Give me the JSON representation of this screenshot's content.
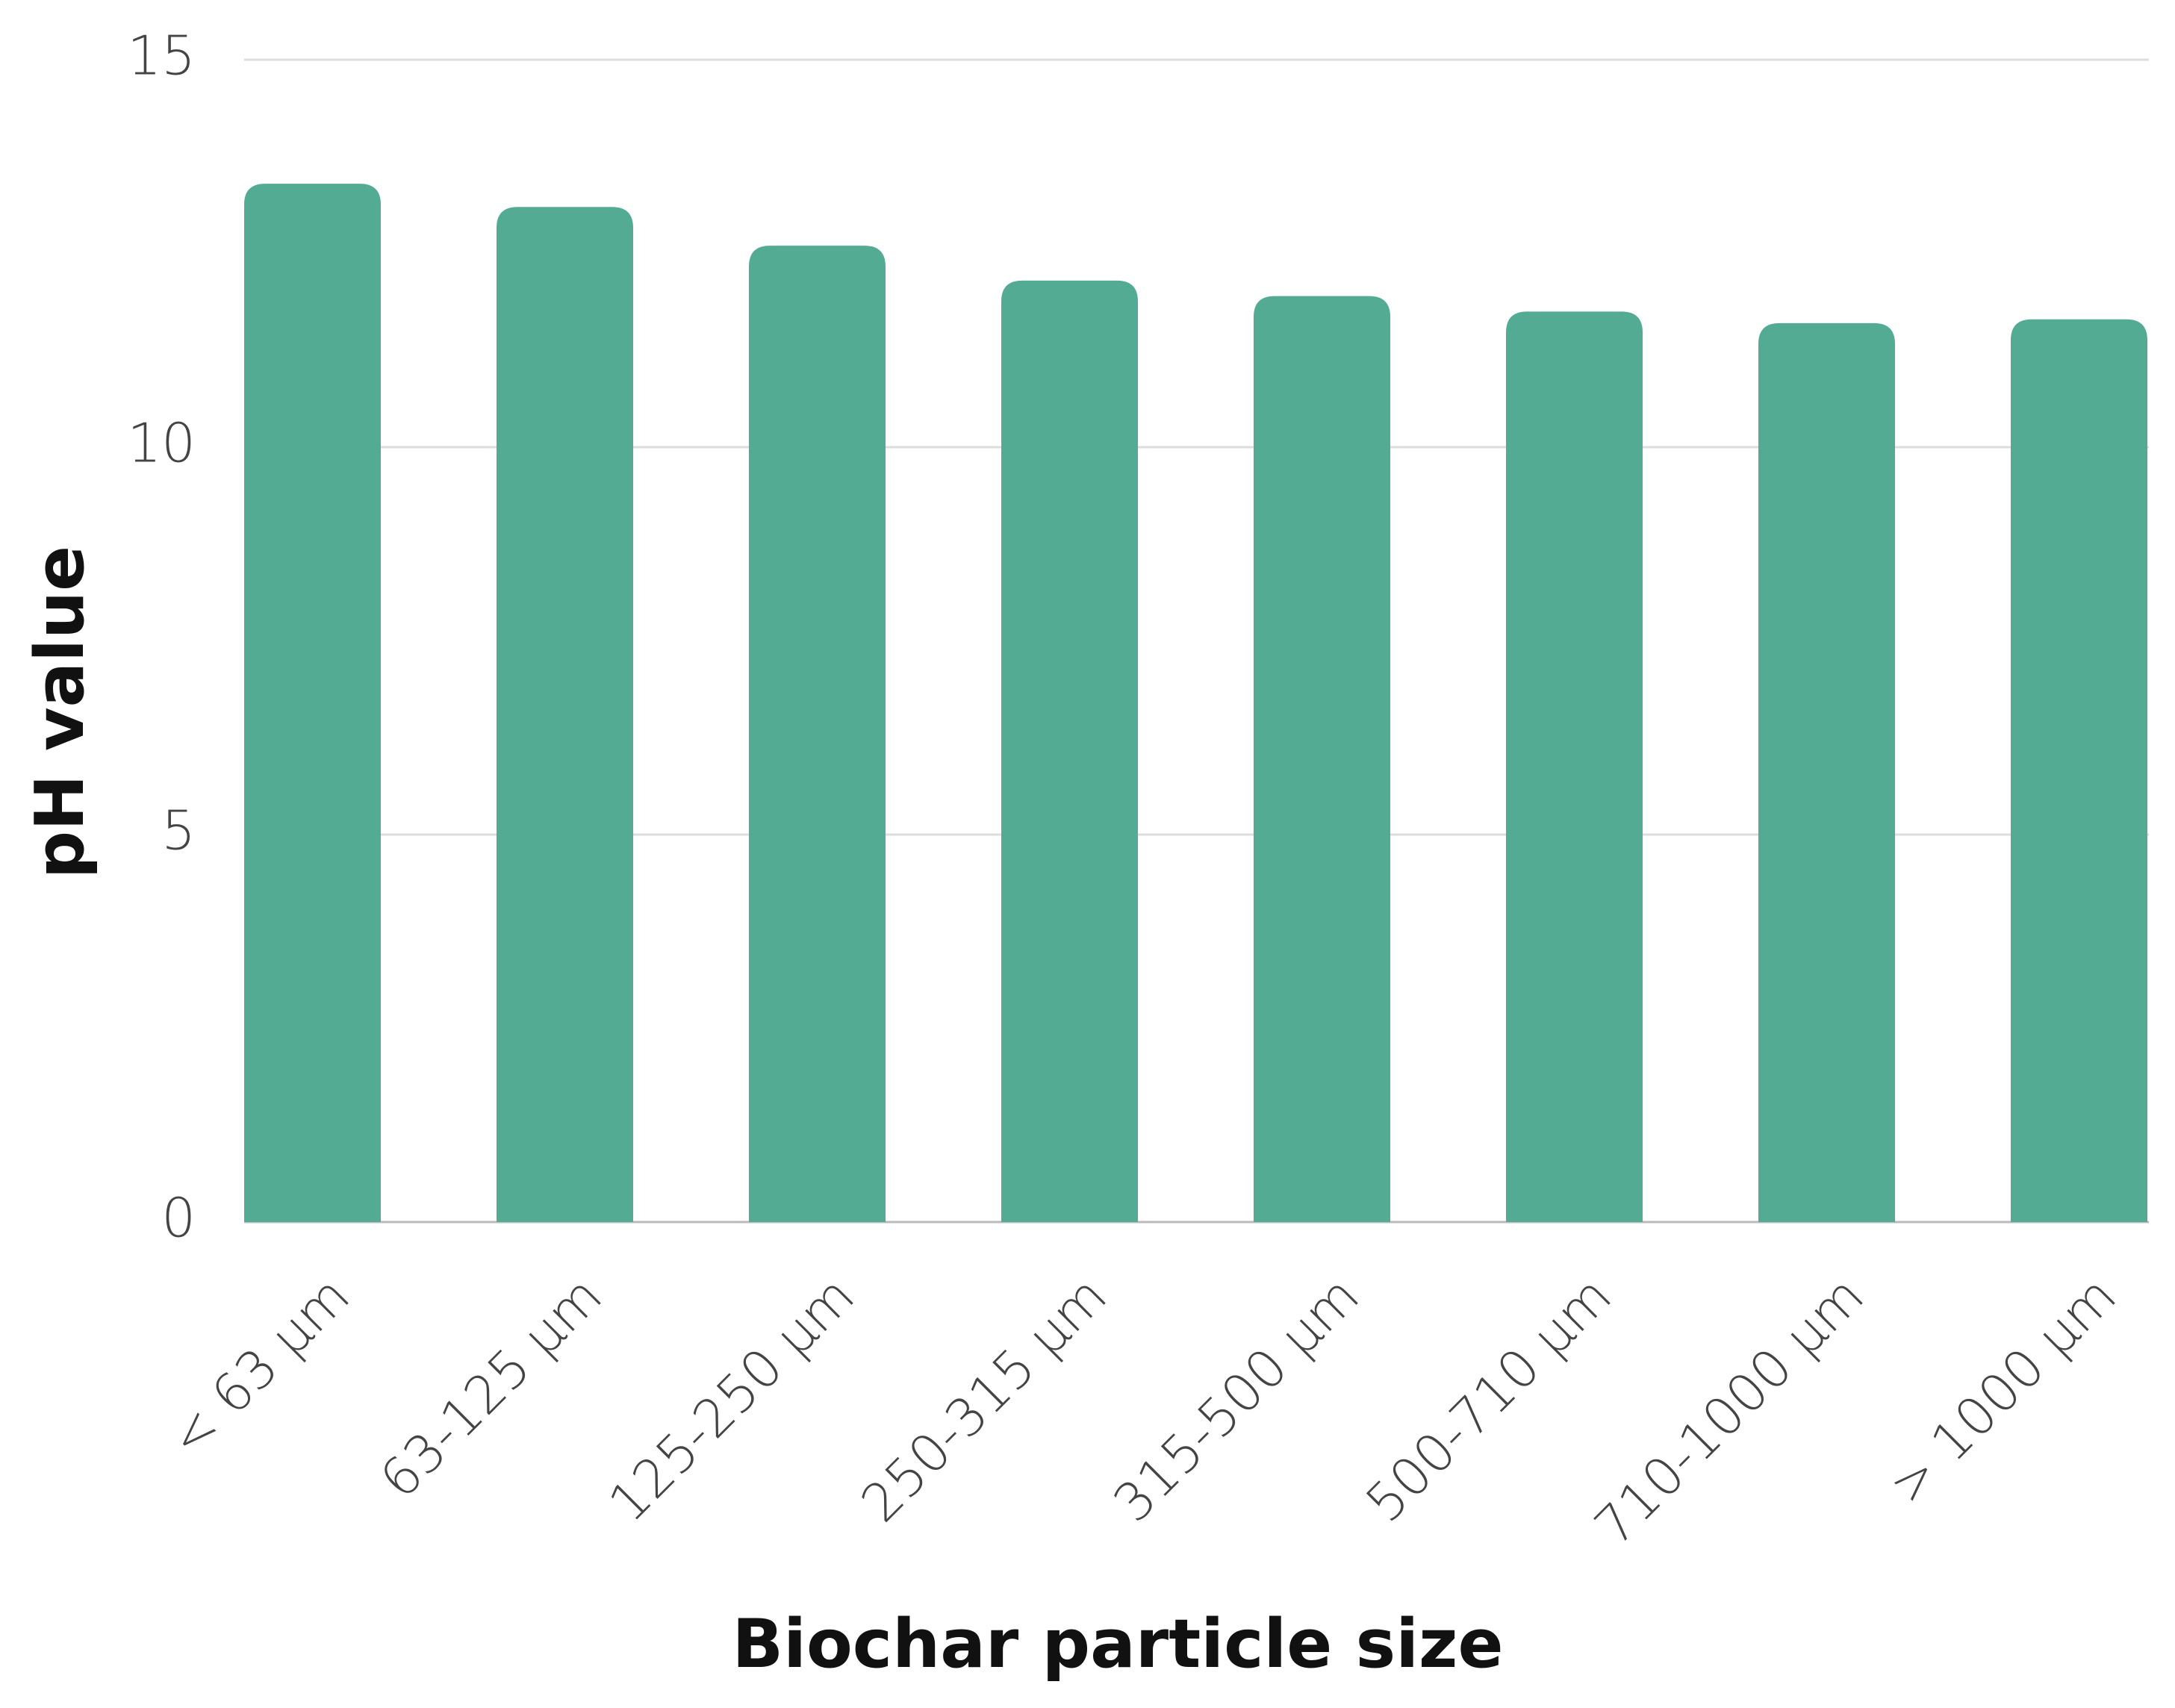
{
  "chart_data": {
    "type": "bar",
    "xlabel": "Biochar particle size",
    "ylabel": "pH value",
    "categories": [
      "< 63 μm",
      "63-125 μm",
      "125-250 μm",
      "250-315 μm",
      "315-500 μm",
      "500-710 μm",
      "710-1000 μm",
      "> 1000 μm"
    ],
    "values": [
      13.4,
      13.1,
      12.6,
      12.15,
      11.95,
      11.75,
      11.6,
      11.65
    ],
    "color": "#52ab92",
    "ylim": [
      0,
      15
    ],
    "yticks": [
      0,
      5,
      10,
      15
    ],
    "grid": true
  }
}
